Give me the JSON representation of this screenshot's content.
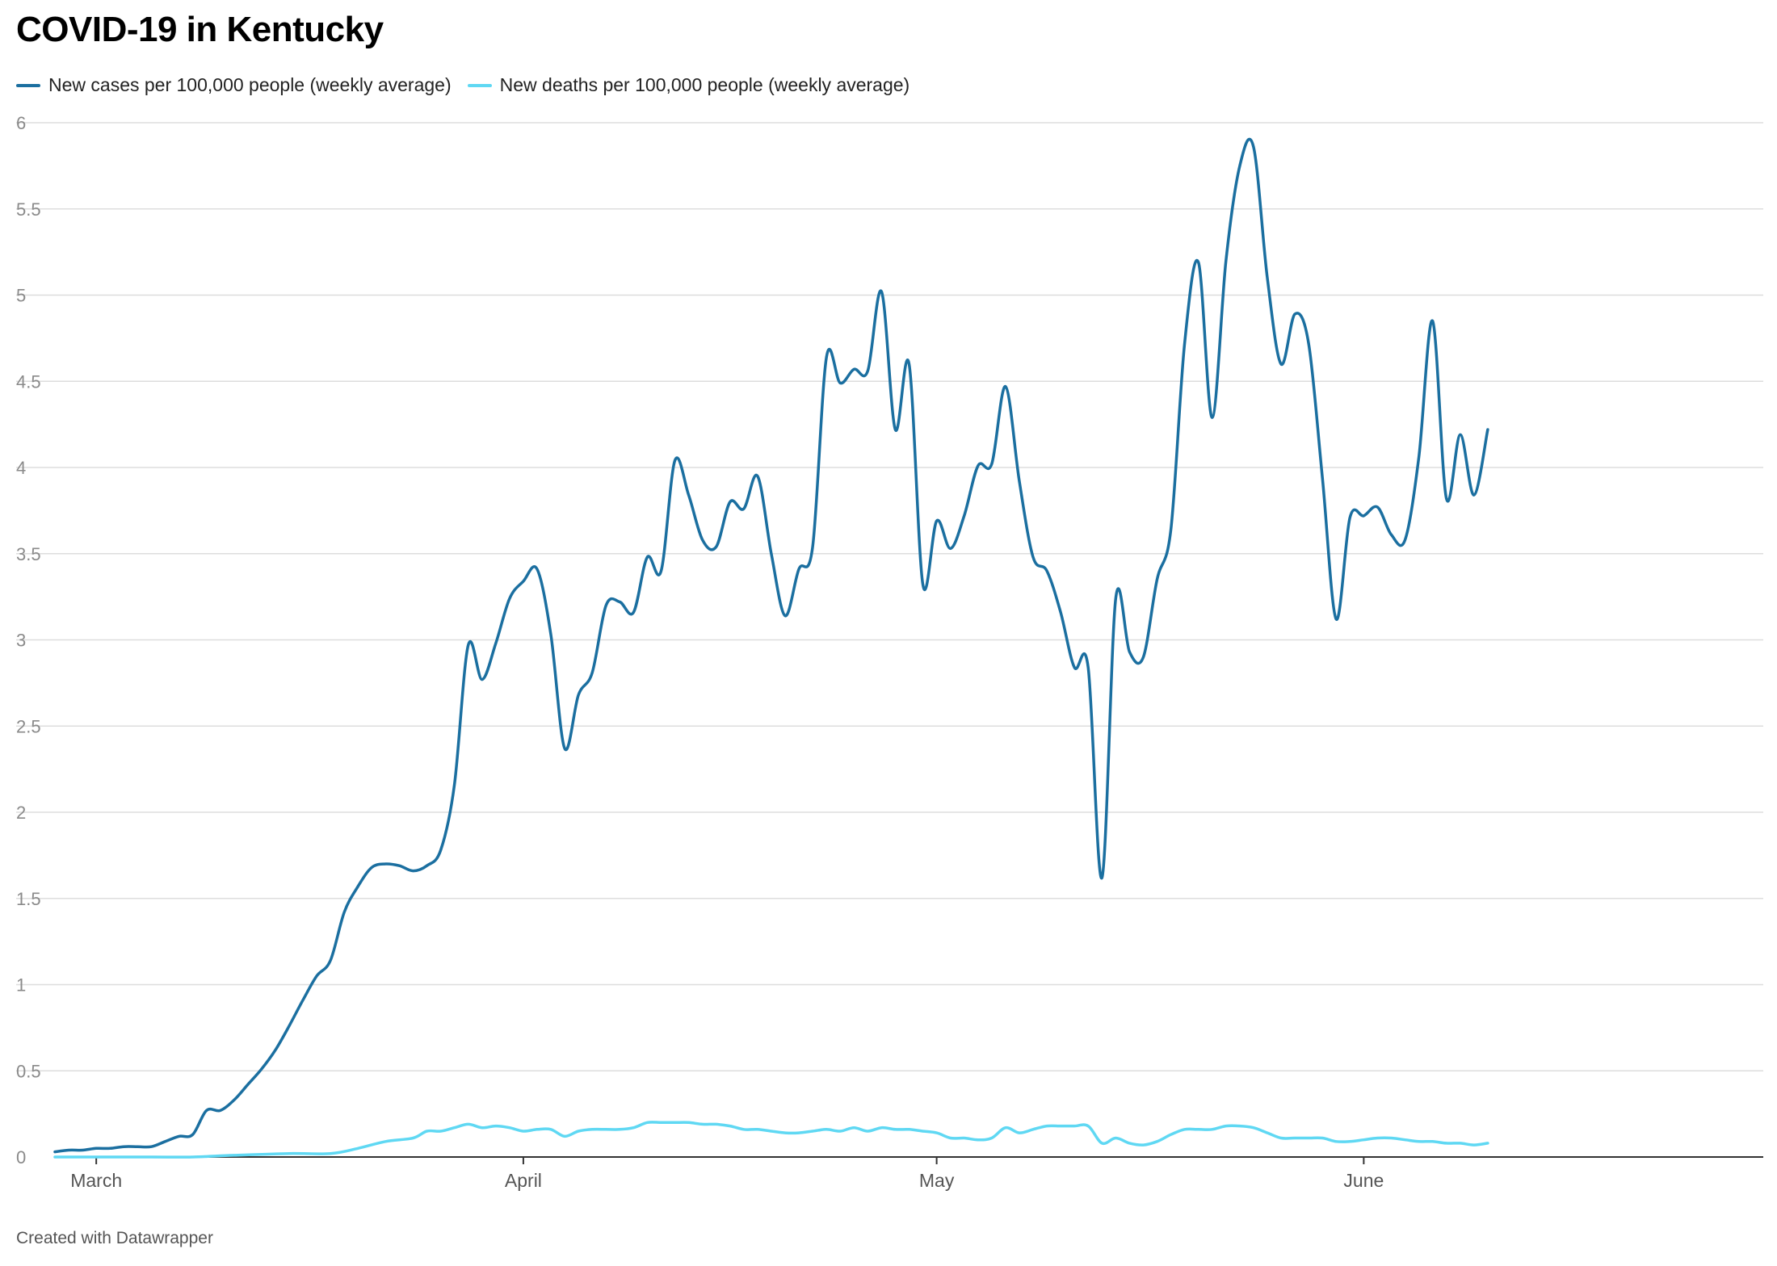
{
  "title": "COVID-19 in Kentucky",
  "footer": "Created with Datawrapper",
  "colors": {
    "cases": "#1b6fa0",
    "deaths": "#5fd8f3",
    "grid": "#dddddd",
    "axis": "#333333",
    "tick": "#8a8a8a"
  },
  "chart_data": {
    "type": "line",
    "title": "COVID-19 in Kentucky",
    "xlabel": "",
    "ylabel": "",
    "ylim": [
      0,
      6
    ],
    "yticks": [
      "0",
      "0.5",
      "1",
      "1.5",
      "2",
      "2.5",
      "3",
      "3.5",
      "4",
      "4.5",
      "5",
      "5.5",
      "6"
    ],
    "xticks": [
      {
        "label": "March",
        "date": "2020-03-01"
      },
      {
        "label": "April",
        "date": "2020-04-01"
      },
      {
        "label": "May",
        "date": "2020-05-01"
      },
      {
        "label": "June",
        "date": "2020-06-01"
      }
    ],
    "xrange": [
      "2020-02-27",
      "2020-06-30"
    ],
    "grid": true,
    "legend": "top-left",
    "series": [
      {
        "name": "New cases per 100,000 people (weekly average)",
        "color": "#1b6fa0",
        "points": [
          [
            "2020-02-27",
            0.03
          ],
          [
            "2020-02-28",
            0.04
          ],
          [
            "2020-02-29",
            0.04
          ],
          [
            "2020-03-01",
            0.05
          ],
          [
            "2020-03-02",
            0.05
          ],
          [
            "2020-03-03",
            0.06
          ],
          [
            "2020-03-04",
            0.06
          ],
          [
            "2020-03-05",
            0.06
          ],
          [
            "2020-03-06",
            0.09
          ],
          [
            "2020-03-07",
            0.12
          ],
          [
            "2020-03-08",
            0.13
          ],
          [
            "2020-03-09",
            0.27
          ],
          [
            "2020-03-10",
            0.27
          ],
          [
            "2020-03-11",
            0.33
          ],
          [
            "2020-03-12",
            0.42
          ],
          [
            "2020-03-13",
            0.51
          ],
          [
            "2020-03-14",
            0.62
          ],
          [
            "2020-03-15",
            0.76
          ],
          [
            "2020-03-16",
            0.91
          ],
          [
            "2020-03-17",
            1.05
          ],
          [
            "2020-03-18",
            1.14
          ],
          [
            "2020-03-19",
            1.42
          ],
          [
            "2020-03-20",
            1.57
          ],
          [
            "2020-03-21",
            1.68
          ],
          [
            "2020-03-22",
            1.7
          ],
          [
            "2020-03-23",
            1.69
          ],
          [
            "2020-03-24",
            1.66
          ],
          [
            "2020-03-25",
            1.69
          ],
          [
            "2020-03-26",
            1.78
          ],
          [
            "2020-03-27",
            2.16
          ],
          [
            "2020-03-28",
            2.97
          ],
          [
            "2020-03-29",
            2.77
          ],
          [
            "2020-03-30",
            2.98
          ],
          [
            "2020-03-31",
            3.24
          ],
          [
            "2020-04-01",
            3.34
          ],
          [
            "2020-04-02",
            3.41
          ],
          [
            "2020-04-03",
            3.03
          ],
          [
            "2020-04-04",
            2.37
          ],
          [
            "2020-04-05",
            2.68
          ],
          [
            "2020-04-06",
            2.81
          ],
          [
            "2020-04-07",
            3.2
          ],
          [
            "2020-04-08",
            3.22
          ],
          [
            "2020-04-09",
            3.16
          ],
          [
            "2020-04-10",
            3.48
          ],
          [
            "2020-04-11",
            3.4
          ],
          [
            "2020-04-12",
            4.04
          ],
          [
            "2020-04-13",
            3.84
          ],
          [
            "2020-04-14",
            3.58
          ],
          [
            "2020-04-15",
            3.54
          ],
          [
            "2020-04-16",
            3.8
          ],
          [
            "2020-04-17",
            3.76
          ],
          [
            "2020-04-18",
            3.95
          ],
          [
            "2020-04-19",
            3.5
          ],
          [
            "2020-04-20",
            3.14
          ],
          [
            "2020-04-21",
            3.41
          ],
          [
            "2020-04-22",
            3.54
          ],
          [
            "2020-04-23",
            4.64
          ],
          [
            "2020-04-24",
            4.49
          ],
          [
            "2020-04-25",
            4.57
          ],
          [
            "2020-04-26",
            4.56
          ],
          [
            "2020-04-27",
            5.02
          ],
          [
            "2020-04-28",
            4.22
          ],
          [
            "2020-04-29",
            4.6
          ],
          [
            "2020-04-30",
            3.32
          ],
          [
            "2020-05-01",
            3.69
          ],
          [
            "2020-05-02",
            3.53
          ],
          [
            "2020-05-03",
            3.72
          ],
          [
            "2020-05-04",
            4.01
          ],
          [
            "2020-05-05",
            4.02
          ],
          [
            "2020-05-06",
            4.47
          ],
          [
            "2020-05-07",
            3.92
          ],
          [
            "2020-05-08",
            3.48
          ],
          [
            "2020-05-09",
            3.4
          ],
          [
            "2020-05-10",
            3.16
          ],
          [
            "2020-05-11",
            2.84
          ],
          [
            "2020-05-12",
            2.84
          ],
          [
            "2020-05-13",
            1.62
          ],
          [
            "2020-05-14",
            3.24
          ],
          [
            "2020-05-15",
            2.93
          ],
          [
            "2020-05-16",
            2.9
          ],
          [
            "2020-05-17",
            3.35
          ],
          [
            "2020-05-18",
            3.64
          ],
          [
            "2020-05-19",
            4.72
          ],
          [
            "2020-05-20",
            5.19
          ],
          [
            "2020-05-21",
            4.29
          ],
          [
            "2020-05-22",
            5.2
          ],
          [
            "2020-05-23",
            5.75
          ],
          [
            "2020-05-24",
            5.86
          ],
          [
            "2020-05-25",
            5.1
          ],
          [
            "2020-05-26",
            4.6
          ],
          [
            "2020-05-27",
            4.89
          ],
          [
            "2020-05-28",
            4.72
          ],
          [
            "2020-05-29",
            3.94
          ],
          [
            "2020-05-30",
            3.12
          ],
          [
            "2020-05-31",
            3.71
          ],
          [
            "2020-06-01",
            3.72
          ],
          [
            "2020-06-02",
            3.77
          ],
          [
            "2020-06-03",
            3.61
          ],
          [
            "2020-06-04",
            3.58
          ],
          [
            "2020-06-05",
            4.06
          ],
          [
            "2020-06-06",
            4.85
          ],
          [
            "2020-06-07",
            3.82
          ],
          [
            "2020-06-08",
            4.19
          ],
          [
            "2020-06-09",
            3.84
          ],
          [
            "2020-06-10",
            4.22
          ]
        ]
      },
      {
        "name": "New deaths per 100,000 people (weekly average)",
        "color": "#5fd8f3",
        "points": [
          [
            "2020-02-27",
            0
          ],
          [
            "2020-03-01",
            0
          ],
          [
            "2020-03-05",
            0
          ],
          [
            "2020-03-08",
            0
          ],
          [
            "2020-03-11",
            0.01
          ],
          [
            "2020-03-15",
            0.02
          ],
          [
            "2020-03-18",
            0.02
          ],
          [
            "2020-03-20",
            0.05
          ],
          [
            "2020-03-22",
            0.09
          ],
          [
            "2020-03-24",
            0.11
          ],
          [
            "2020-03-25",
            0.15
          ],
          [
            "2020-03-26",
            0.15
          ],
          [
            "2020-03-27",
            0.17
          ],
          [
            "2020-03-28",
            0.19
          ],
          [
            "2020-03-29",
            0.17
          ],
          [
            "2020-03-30",
            0.18
          ],
          [
            "2020-03-31",
            0.17
          ],
          [
            "2020-04-01",
            0.15
          ],
          [
            "2020-04-02",
            0.16
          ],
          [
            "2020-04-03",
            0.16
          ],
          [
            "2020-04-04",
            0.12
          ],
          [
            "2020-04-05",
            0.15
          ],
          [
            "2020-04-06",
            0.16
          ],
          [
            "2020-04-07",
            0.16
          ],
          [
            "2020-04-08",
            0.16
          ],
          [
            "2020-04-09",
            0.17
          ],
          [
            "2020-04-10",
            0.2
          ],
          [
            "2020-04-11",
            0.2
          ],
          [
            "2020-04-12",
            0.2
          ],
          [
            "2020-04-13",
            0.2
          ],
          [
            "2020-04-14",
            0.19
          ],
          [
            "2020-04-15",
            0.19
          ],
          [
            "2020-04-16",
            0.18
          ],
          [
            "2020-04-17",
            0.16
          ],
          [
            "2020-04-18",
            0.16
          ],
          [
            "2020-04-19",
            0.15
          ],
          [
            "2020-04-20",
            0.14
          ],
          [
            "2020-04-21",
            0.14
          ],
          [
            "2020-04-22",
            0.15
          ],
          [
            "2020-04-23",
            0.16
          ],
          [
            "2020-04-24",
            0.15
          ],
          [
            "2020-04-25",
            0.17
          ],
          [
            "2020-04-26",
            0.15
          ],
          [
            "2020-04-27",
            0.17
          ],
          [
            "2020-04-28",
            0.16
          ],
          [
            "2020-04-29",
            0.16
          ],
          [
            "2020-04-30",
            0.15
          ],
          [
            "2020-05-01",
            0.14
          ],
          [
            "2020-05-02",
            0.11
          ],
          [
            "2020-05-03",
            0.11
          ],
          [
            "2020-05-04",
            0.1
          ],
          [
            "2020-05-05",
            0.11
          ],
          [
            "2020-05-06",
            0.17
          ],
          [
            "2020-05-07",
            0.14
          ],
          [
            "2020-05-08",
            0.16
          ],
          [
            "2020-05-09",
            0.18
          ],
          [
            "2020-05-10",
            0.18
          ],
          [
            "2020-05-11",
            0.18
          ],
          [
            "2020-05-12",
            0.18
          ],
          [
            "2020-05-13",
            0.08
          ],
          [
            "2020-05-14",
            0.11
          ],
          [
            "2020-05-15",
            0.08
          ],
          [
            "2020-05-16",
            0.07
          ],
          [
            "2020-05-17",
            0.09
          ],
          [
            "2020-05-18",
            0.13
          ],
          [
            "2020-05-19",
            0.16
          ],
          [
            "2020-05-20",
            0.16
          ],
          [
            "2020-05-21",
            0.16
          ],
          [
            "2020-05-22",
            0.18
          ],
          [
            "2020-05-23",
            0.18
          ],
          [
            "2020-05-24",
            0.17
          ],
          [
            "2020-05-25",
            0.14
          ],
          [
            "2020-05-26",
            0.11
          ],
          [
            "2020-05-27",
            0.11
          ],
          [
            "2020-05-28",
            0.11
          ],
          [
            "2020-05-29",
            0.11
          ],
          [
            "2020-05-30",
            0.09
          ],
          [
            "2020-05-31",
            0.09
          ],
          [
            "2020-06-01",
            0.1
          ],
          [
            "2020-06-02",
            0.11
          ],
          [
            "2020-06-03",
            0.11
          ],
          [
            "2020-06-04",
            0.1
          ],
          [
            "2020-06-05",
            0.09
          ],
          [
            "2020-06-06",
            0.09
          ],
          [
            "2020-06-07",
            0.08
          ],
          [
            "2020-06-08",
            0.08
          ],
          [
            "2020-06-09",
            0.07
          ],
          [
            "2020-06-10",
            0.08
          ]
        ]
      }
    ]
  }
}
